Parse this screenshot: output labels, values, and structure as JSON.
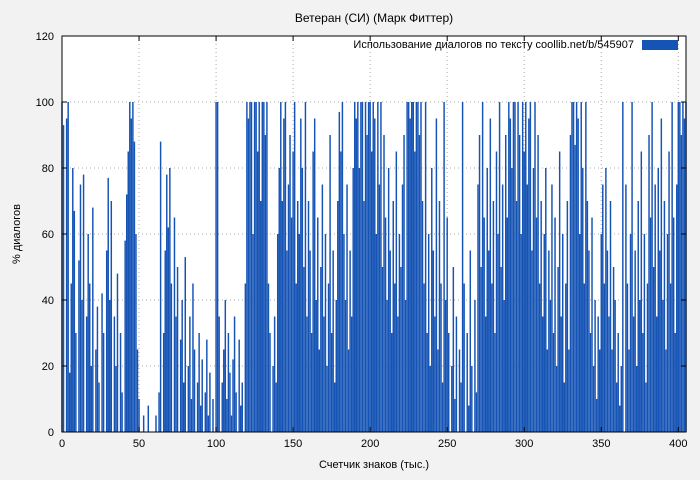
{
  "chart_data": {
    "type": "bar",
    "title": "Ветеран (СИ) (Марк Фиттер)",
    "legend": "Использование диалогов по тексту  coollib.net/b/545907",
    "xlabel": "Счетчик знаков (тыс.)",
    "ylabel": "% диалогов",
    "xlim": [
      0,
      405
    ],
    "ylim": [
      0,
      120
    ],
    "x_ticks": [
      0,
      50,
      100,
      150,
      200,
      250,
      300,
      350,
      400
    ],
    "y_ticks": [
      0,
      20,
      40,
      60,
      80,
      100,
      120
    ],
    "bar_color": "#1553b4",
    "plot_bg": "#ffffff",
    "grid_color": "#aaaaaa",
    "x_start": 0,
    "x_step": 1,
    "values": [
      100,
      93,
      0,
      95,
      100,
      18,
      45,
      80,
      67,
      30,
      0,
      52,
      75,
      40,
      78,
      0,
      35,
      60,
      45,
      20,
      68,
      0,
      25,
      38,
      15,
      0,
      42,
      30,
      0,
      55,
      77,
      40,
      70,
      0,
      35,
      20,
      48,
      0,
      30,
      12,
      0,
      58,
      72,
      85,
      100,
      95,
      100,
      88,
      60,
      25,
      10,
      0,
      0,
      5,
      0,
      0,
      8,
      0,
      0,
      0,
      0,
      5,
      0,
      12,
      88,
      0,
      30,
      55,
      78,
      62,
      80,
      45,
      0,
      65,
      35,
      50,
      0,
      28,
      40,
      15,
      53,
      0,
      20,
      35,
      10,
      45,
      25,
      0,
      15,
      30,
      8,
      22,
      0,
      12,
      28,
      5,
      18,
      0,
      10,
      0,
      100,
      100,
      35,
      0,
      15,
      25,
      40,
      10,
      30,
      18,
      5,
      22,
      35,
      12,
      0,
      28,
      8,
      15,
      0,
      45,
      100,
      95,
      100,
      100,
      60,
      100,
      100,
      85,
      100,
      70,
      100,
      100,
      90,
      100,
      45,
      30,
      0,
      20,
      35,
      15,
      60,
      80,
      100,
      70,
      95,
      100,
      55,
      75,
      90,
      65,
      85,
      100,
      45,
      70,
      60,
      95,
      80,
      50,
      100,
      35,
      70,
      55,
      30,
      85,
      95,
      40,
      65,
      25,
      50,
      75,
      35,
      60,
      20,
      45,
      90,
      30,
      55,
      15,
      40,
      70,
      97,
      85,
      100,
      60,
      40,
      75,
      25,
      55,
      35,
      80,
      100,
      95,
      100,
      80,
      100,
      100,
      70,
      100,
      90,
      100,
      100,
      85,
      100,
      95,
      60,
      100,
      75,
      100,
      50,
      90,
      65,
      40,
      80,
      55,
      30,
      70,
      45,
      85,
      35,
      60,
      50,
      75,
      90,
      40,
      100,
      100,
      95,
      100,
      100,
      85,
      100,
      100,
      90,
      100,
      70,
      45,
      100,
      30,
      60,
      20,
      80,
      55,
      35,
      95,
      25,
      70,
      45,
      15,
      100,
      40,
      65,
      30,
      0,
      20,
      50,
      10,
      35,
      0,
      25,
      15,
      100,
      45,
      0,
      30,
      8,
      55,
      20,
      0,
      40,
      12,
      75,
      90,
      50,
      100,
      65,
      35,
      80,
      55,
      95,
      45,
      70,
      30,
      85,
      60,
      100,
      50,
      75,
      40,
      90,
      65,
      100,
      95,
      80,
      100,
      100,
      70,
      100,
      90,
      60,
      100,
      85,
      100,
      75,
      95,
      100,
      55,
      80,
      100,
      65,
      90,
      45,
      70,
      35,
      60,
      80,
      25,
      55,
      40,
      75,
      30,
      65,
      20,
      50,
      85,
      35,
      60,
      15,
      45,
      70,
      25,
      90,
      100,
      100,
      87,
      100,
      95,
      60,
      100,
      80,
      45,
      100,
      70,
      55,
      30,
      65,
      20,
      40,
      10,
      35,
      25,
      60,
      75,
      45,
      80,
      55,
      35,
      70,
      25,
      50,
      40,
      15,
      30,
      8,
      20,
      100,
      0,
      75,
      45,
      25,
      60,
      100,
      35,
      55,
      20,
      70,
      40,
      85,
      30,
      60,
      15,
      45,
      90,
      65,
      100,
      50,
      75,
      35,
      80,
      55,
      95,
      40,
      70,
      25,
      60,
      85,
      45,
      100,
      65,
      30,
      75,
      100,
      100,
      90,
      100,
      95,
      100
    ]
  }
}
